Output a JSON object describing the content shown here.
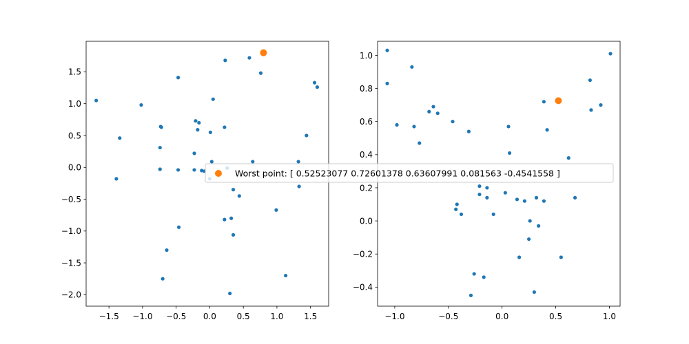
{
  "chart_data": [
    {
      "type": "scatter",
      "title": "",
      "xlabel": "",
      "ylabel": "",
      "xlim": [
        -1.84,
        1.77
      ],
      "ylim": [
        -2.18,
        1.98
      ],
      "xticks": [
        -1.5,
        -1.0,
        -0.5,
        0.0,
        0.5,
        1.0,
        1.5
      ],
      "xtick_labels": [
        "−1.5",
        "−1.0",
        "−0.5",
        "0.0",
        "0.5",
        "1.0",
        "1.5"
      ],
      "yticks": [
        -2.0,
        -1.5,
        -1.0,
        -0.5,
        0.0,
        0.5,
        1.0,
        1.5
      ],
      "ytick_labels": [
        "−2.0",
        "−1.5",
        "−1.0",
        "−0.5",
        "0.0",
        "0.5",
        "1.0",
        "1.5"
      ],
      "grid": false,
      "series": [
        {
          "color": "#1f77b4",
          "points": [
            [
              -1.69,
              1.05
            ],
            [
              -1.02,
              0.98
            ],
            [
              -0.73,
              0.64
            ],
            [
              -0.72,
              0.63
            ],
            [
              -0.74,
              0.31
            ],
            [
              -1.34,
              0.46
            ],
            [
              -1.39,
              -0.18
            ],
            [
              -0.74,
              -0.03
            ],
            [
              -0.47,
              1.41
            ],
            [
              -0.21,
              0.73
            ],
            [
              -0.16,
              0.7
            ],
            [
              -0.18,
              0.59
            ],
            [
              -0.23,
              0.22
            ],
            [
              -0.23,
              -0.04
            ],
            [
              -0.12,
              -0.05
            ],
            [
              -0.08,
              -0.06
            ],
            [
              -0.47,
              -0.04
            ],
            [
              -0.46,
              -0.94
            ],
            [
              -0.64,
              -1.3
            ],
            [
              -0.7,
              -1.75
            ],
            [
              0.01,
              0.55
            ],
            [
              0.05,
              1.07
            ],
            [
              0.22,
              0.63
            ],
            [
              0.23,
              1.68
            ],
            [
              0.03,
              0.09
            ],
            [
              0.26,
              -0.01
            ],
            [
              0.0,
              -0.18
            ],
            [
              0.59,
              1.72
            ],
            [
              0.76,
              1.48
            ],
            [
              0.64,
              0.09
            ],
            [
              0.35,
              -0.35
            ],
            [
              0.44,
              -0.45
            ],
            [
              0.22,
              -0.82
            ],
            [
              0.32,
              -0.8
            ],
            [
              0.35,
              -1.06
            ],
            [
              0.3,
              -1.98
            ],
            [
              0.99,
              -0.67
            ],
            [
              1.13,
              -1.7
            ],
            [
              1.32,
              0.09
            ],
            [
              1.33,
              -0.3
            ],
            [
              1.44,
              0.5
            ],
            [
              1.56,
              1.33
            ],
            [
              1.6,
              1.26
            ]
          ]
        },
        {
          "color": "#ff7f0e",
          "points": [
            [
              0.8,
              1.8
            ]
          ]
        }
      ]
    },
    {
      "type": "scatter",
      "title": "",
      "xlabel": "",
      "ylabel": "",
      "xlim": [
        -1.16,
        1.1
      ],
      "ylim": [
        -0.515,
        1.085
      ],
      "xticks": [
        -1.0,
        -0.5,
        0.0,
        0.5,
        1.0
      ],
      "xtick_labels": [
        "−1.0",
        "−0.5",
        "0.0",
        "0.5",
        "1.0"
      ],
      "yticks": [
        -0.4,
        -0.2,
        0.0,
        0.2,
        0.4,
        0.6,
        0.8,
        1.0
      ],
      "ytick_labels": [
        "−0.4",
        "−0.2",
        "0.0",
        "0.2",
        "0.4",
        "0.6",
        "0.8",
        "1.0"
      ],
      "grid": false,
      "series": [
        {
          "color": "#1f77b4",
          "points": [
            [
              -1.07,
              1.03
            ],
            [
              -1.07,
              0.83
            ],
            [
              -0.84,
              0.93
            ],
            [
              -0.98,
              0.58
            ],
            [
              -0.82,
              0.57
            ],
            [
              -0.77,
              0.47
            ],
            [
              -0.68,
              0.66
            ],
            [
              -0.64,
              0.69
            ],
            [
              -0.6,
              0.65
            ],
            [
              -0.46,
              0.6
            ],
            [
              -0.31,
              0.54
            ],
            [
              -0.42,
              0.1
            ],
            [
              -0.43,
              0.07
            ],
            [
              -0.38,
              0.04
            ],
            [
              -0.21,
              0.21
            ],
            [
              -0.21,
              0.16
            ],
            [
              -0.14,
              0.2
            ],
            [
              -0.14,
              0.14
            ],
            [
              -0.08,
              0.04
            ],
            [
              0.03,
              0.17
            ],
            [
              0.06,
              0.57
            ],
            [
              0.07,
              0.41
            ],
            [
              0.14,
              0.13
            ],
            [
              0.21,
              0.12
            ],
            [
              0.32,
              0.14
            ],
            [
              0.39,
              0.12
            ],
            [
              0.26,
              0.0
            ],
            [
              0.34,
              -0.03
            ],
            [
              0.25,
              -0.11
            ],
            [
              0.16,
              -0.22
            ],
            [
              -0.26,
              -0.32
            ],
            [
              -0.17,
              -0.34
            ],
            [
              -0.29,
              -0.45
            ],
            [
              0.3,
              -0.43
            ],
            [
              0.55,
              -0.22
            ],
            [
              0.39,
              0.72
            ],
            [
              0.42,
              0.55
            ],
            [
              0.62,
              0.38
            ],
            [
              0.68,
              0.14
            ],
            [
              0.82,
              0.85
            ],
            [
              0.83,
              0.67
            ],
            [
              0.92,
              0.7
            ],
            [
              1.01,
              1.01
            ]
          ]
        },
        {
          "color": "#ff7f0e",
          "points": [
            [
              0.525,
              0.726
            ]
          ]
        }
      ]
    }
  ],
  "legend": {
    "marker_color": "#ff7f0e",
    "label": "Worst point: [ 0.52523077  0.72601378  0.63607991  0.081563   -0.4541558 ]"
  }
}
